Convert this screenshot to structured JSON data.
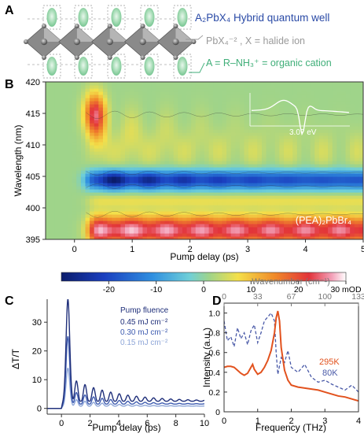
{
  "panel_a": {
    "letter": "A",
    "title": "A₂PbX₄ Hybrid quantum well",
    "label_octahedra": "PbX₄⁻² , X = halide ion",
    "label_cation": "A = R–NH₃⁺ = organic cation",
    "colors": {
      "title": "#2a4aa6",
      "octahedra": "#9a9a9a",
      "cation": "#3fae78"
    }
  },
  "panel_b": {
    "letter": "B"
  },
  "panel_c": {
    "letter": "C"
  },
  "panel_d": {
    "letter": "D"
  },
  "chart_data": [
    {
      "id": "B",
      "type": "heatmap",
      "title": "",
      "xlabel": "Pump delay (ps)",
      "ylabel": "Wavelength (nm)",
      "xlim": [
        -0.5,
        5
      ],
      "ylim": [
        395,
        420
      ],
      "xticks": [
        "0",
        "1",
        "2",
        "3",
        "4",
        "5"
      ],
      "yticks": [
        "395",
        "400",
        "405",
        "410",
        "415",
        "420"
      ],
      "annotation": "(PEA)₂PbBr₄",
      "colorbar": {
        "min": -30,
        "max": 30,
        "ticks": [
          "-20",
          "-10",
          "0",
          "10",
          "20",
          "30 mOD"
        ]
      },
      "features": [
        {
          "center_nm": 404.5,
          "delay_start_ps": 0.3,
          "delay_end_ps": 5,
          "sign": "negative",
          "peak_mOD": -30
        },
        {
          "center_nm": 397,
          "delay_start_ps": 0.3,
          "delay_end_ps": 5,
          "sign": "positive",
          "peak_mOD": 28
        },
        {
          "center_nm": 415,
          "delay_start_ps": 0.1,
          "delay_end_ps": 0.6,
          "sign": "positive",
          "peak_mOD": 22
        }
      ],
      "inset": {
        "label": "3.07 eV"
      }
    },
    {
      "id": "C",
      "type": "line",
      "title": "",
      "xlabel": "Pump delay (ps)",
      "ylabel": "ΔT/T",
      "xlim": [
        -1,
        10
      ],
      "ylim": [
        -2,
        38
      ],
      "xticks": [
        "0",
        "2",
        "4",
        "6",
        "8",
        "10"
      ],
      "yticks": [
        "0",
        "10",
        "20",
        "30"
      ],
      "legend_title": "Pump fluence",
      "series": [
        {
          "name": "0.45 mJ cm⁻²",
          "color": "#1f2f7a",
          "peak": 38,
          "baseline": 2.5,
          "osc_amp": 10,
          "decay_ps": 3.0,
          "period_ps": 0.6
        },
        {
          "name": "0.30 mJ cm⁻²",
          "color": "#3d5bb0",
          "peak": 25,
          "baseline": 1.5,
          "osc_amp": 6,
          "decay_ps": 2.6,
          "period_ps": 0.6
        },
        {
          "name": "0.15 mJ cm⁻²",
          "color": "#8ea6d8",
          "peak": 14,
          "baseline": 0.8,
          "osc_amp": 3.5,
          "decay_ps": 2.3,
          "period_ps": 0.6
        }
      ]
    },
    {
      "id": "D",
      "type": "line",
      "title": "",
      "xlabel": "Frequency (THz)",
      "ylabel": "Intensity (a.u.)",
      "top_xlabel": "Wavenumber (cm⁻¹)",
      "xlim": [
        0,
        4
      ],
      "ylim": [
        0,
        1.1
      ],
      "xticks": [
        "0",
        "1",
        "2",
        "3",
        "4"
      ],
      "yticks": [
        "0",
        "0.2",
        "0.4",
        "0.6",
        "0.8",
        "1.0"
      ],
      "top_xticks": [
        "0",
        "33",
        "67",
        "100",
        "133"
      ],
      "series": [
        {
          "name": "295K",
          "color": "#e2521e",
          "style": "solid",
          "x": [
            0,
            0.1,
            0.2,
            0.3,
            0.4,
            0.5,
            0.6,
            0.7,
            0.8,
            0.85,
            0.9,
            1.0,
            1.1,
            1.2,
            1.3,
            1.4,
            1.5,
            1.55,
            1.6,
            1.65,
            1.7,
            1.8,
            1.9,
            2.0,
            2.2,
            2.4,
            2.6,
            2.8,
            3.0,
            3.2,
            3.4,
            3.6,
            3.8,
            4.0
          ],
          "y": [
            0.45,
            0.46,
            0.46,
            0.45,
            0.42,
            0.39,
            0.37,
            0.39,
            0.45,
            0.48,
            0.43,
            0.38,
            0.4,
            0.45,
            0.52,
            0.62,
            0.8,
            0.95,
            1.02,
            0.92,
            0.65,
            0.42,
            0.32,
            0.27,
            0.25,
            0.24,
            0.23,
            0.22,
            0.2,
            0.18,
            0.16,
            0.15,
            0.13,
            0.11
          ]
        },
        {
          "name": "80K",
          "color": "#4a5aa8",
          "style": "dashed",
          "x": [
            0,
            0.1,
            0.2,
            0.3,
            0.4,
            0.5,
            0.6,
            0.7,
            0.8,
            0.9,
            1.0,
            1.1,
            1.2,
            1.3,
            1.4,
            1.5,
            1.55,
            1.6,
            1.7,
            1.8,
            1.9,
            2.0,
            2.2,
            2.4,
            2.6,
            2.8,
            3.0,
            3.2,
            3.4,
            3.6,
            3.8,
            4.0
          ],
          "y": [
            0.92,
            0.72,
            0.76,
            0.66,
            0.85,
            0.74,
            0.8,
            0.68,
            0.82,
            0.88,
            0.7,
            0.8,
            0.92,
            0.96,
            1.0,
            0.92,
            0.6,
            0.38,
            0.55,
            0.5,
            0.62,
            0.45,
            0.4,
            0.48,
            0.35,
            0.3,
            0.32,
            0.28,
            0.25,
            0.22,
            0.27,
            0.2
          ]
        }
      ]
    }
  ]
}
